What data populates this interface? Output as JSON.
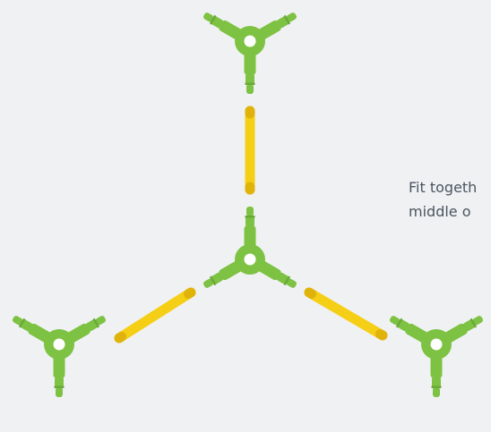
{
  "instruction": {
    "line1": "Fit togeth",
    "line2": "middle o"
  },
  "colors": {
    "background": "#f0f1f3",
    "connector": "#7dc242",
    "connector_dark": "#6aa93a",
    "straw": "#f5cf16",
    "straw_shade": "#e0b30b",
    "hole": "#ffffff",
    "text": "#4a5561"
  },
  "parts": {
    "connectors": [
      {
        "name": "connector-top",
        "role": "three-way connector"
      },
      {
        "name": "connector-center",
        "role": "three-way connector"
      },
      {
        "name": "connector-bottom-left",
        "role": "three-way connector"
      },
      {
        "name": "connector-bottom-right",
        "role": "three-way connector"
      }
    ],
    "straws": [
      {
        "name": "straw-vertical",
        "role": "straw"
      },
      {
        "name": "straw-lower-left",
        "role": "straw"
      },
      {
        "name": "straw-lower-right",
        "role": "straw"
      }
    ]
  }
}
